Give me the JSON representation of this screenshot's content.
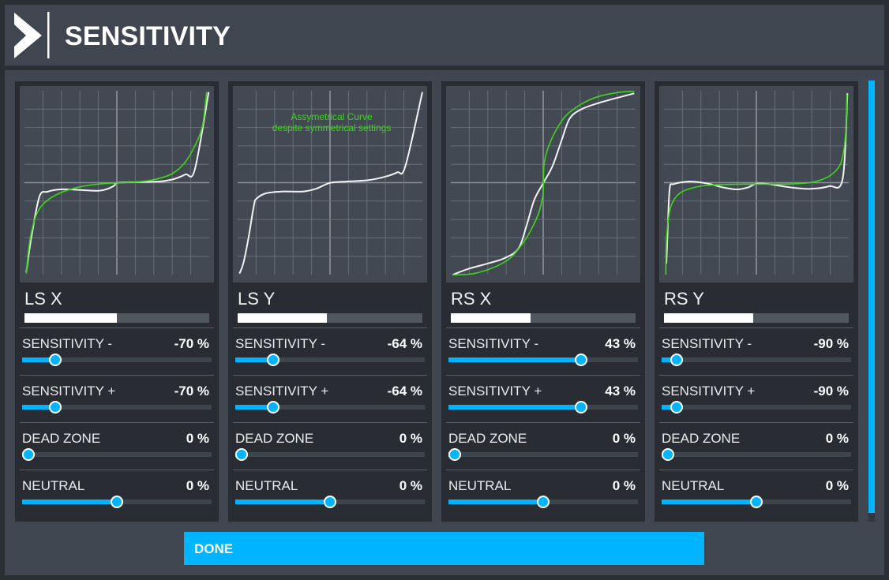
{
  "header": {
    "title": "SENSITIVITY",
    "logo_icon": "chevron-right-logo-icon"
  },
  "colors": {
    "accent": "#00b4ff",
    "curve_white": "#f2f2f2",
    "curve_green": "#3cd61a",
    "grid": "#686e76",
    "grid_center": "#8d9197"
  },
  "panels": [
    {
      "name": "LS X",
      "input_value_pct": 50,
      "graph": {
        "annotation": null,
        "white_curve": [
          [
            8.3,
            236
          ],
          [
            15,
            190
          ],
          [
            25,
            140
          ],
          [
            35,
            134
          ],
          [
            51.7,
            131
          ],
          [
            76.7,
            131.7
          ],
          [
            100,
            132.7
          ],
          [
            112,
            130
          ],
          [
            120,
            126
          ],
          [
            123.3,
            122.7
          ],
          [
            146.7,
            121.7
          ],
          [
            176.7,
            121
          ],
          [
            195,
            118
          ],
          [
            210,
            112
          ],
          [
            221.7,
            106
          ],
          [
            239.3,
            7.7
          ]
        ],
        "green_curve": [
          [
            8.3,
            237.7
          ],
          [
            10,
            219
          ],
          [
            13.3,
            192.7
          ],
          [
            20,
            166
          ],
          [
            30,
            149.3
          ],
          [
            50,
            136
          ],
          [
            76.7,
            127.7
          ],
          [
            100,
            124.3
          ],
          [
            123.3,
            122.7
          ],
          [
            146.7,
            121.7
          ],
          [
            170,
            118.7
          ],
          [
            193.3,
            111
          ],
          [
            210,
            96
          ],
          [
            223.3,
            72.7
          ],
          [
            231.7,
            49.3
          ],
          [
            236.7,
            7.7
          ]
        ]
      },
      "settings": [
        {
          "label": "SENSITIVITY -",
          "value_text": "-70 %",
          "position_pct": 15
        },
        {
          "label": "SENSITIVITY +",
          "value_text": "-70 %",
          "position_pct": 15
        },
        {
          "label": "DEAD ZONE",
          "value_text": "0 %",
          "position_pct": 0
        },
        {
          "label": "NEUTRAL",
          "value_text": "0 %",
          "position_pct": 50
        }
      ]
    },
    {
      "name": "LS Y",
      "input_value_pct": 48.3,
      "graph": {
        "annotation": {
          "line1": "Assymetrical Curve",
          "line2": "despite symmetrical settings"
        },
        "white_curve": [
          [
            8.3,
            237.7
          ],
          [
            13.3,
            224.3
          ],
          [
            20,
            191
          ],
          [
            26.7,
            151
          ],
          [
            30,
            142.7
          ],
          [
            41.7,
            136
          ],
          [
            61.7,
            133.7
          ],
          [
            88.3,
            133.7
          ],
          [
            105,
            130.3
          ],
          [
            123.3,
            122.7
          ],
          [
            145,
            121
          ],
          [
            171.7,
            119.3
          ],
          [
            195,
            114.3
          ],
          [
            208.3,
            109.3
          ],
          [
            218.3,
            102
          ],
          [
            240,
            7.7
          ]
        ],
        "green_curve": []
      },
      "settings": [
        {
          "label": "SENSITIVITY -",
          "value_text": "-64 %",
          "position_pct": 18
        },
        {
          "label": "SENSITIVITY +",
          "value_text": "-64 %",
          "position_pct": 18
        },
        {
          "label": "DEAD ZONE",
          "value_text": "0 %",
          "position_pct": 0
        },
        {
          "label": "NEUTRAL",
          "value_text": "0 %",
          "position_pct": 50
        }
      ]
    },
    {
      "name": "RS X",
      "input_value_pct": 43,
      "graph": {
        "annotation": null,
        "white_curve": [
          [
            8.3,
            239.3
          ],
          [
            28.3,
            231.7
          ],
          [
            55,
            224.3
          ],
          [
            75,
            217.7
          ],
          [
            91.7,
            206
          ],
          [
            101.7,
            177.7
          ],
          [
            111.7,
            144.3
          ],
          [
            123.3,
            122.7
          ],
          [
            135,
            101
          ],
          [
            146.7,
            67.7
          ],
          [
            156.7,
            41
          ],
          [
            171.7,
            29.3
          ],
          [
            195,
            21
          ],
          [
            221.7,
            13.7
          ],
          [
            238.3,
            9.3
          ]
        ],
        "green_curve": [
          [
            8.3,
            239.3
          ],
          [
            35,
            237.7
          ],
          [
            61.7,
            229.3
          ],
          [
            81.7,
            217.7
          ],
          [
            98.3,
            197.7
          ],
          [
            110,
            177.7
          ],
          [
            118.3,
            157.7
          ],
          [
            122.7,
            137.7
          ],
          [
            123.3,
            122.7
          ],
          [
            124,
            101
          ],
          [
            128.3,
            81
          ],
          [
            138.3,
            57.7
          ],
          [
            151.7,
            37.7
          ],
          [
            171.7,
            22.7
          ],
          [
            195,
            12.7
          ],
          [
            221.7,
            7.7
          ],
          [
            238.3,
            7
          ]
        ]
      },
      "settings": [
        {
          "label": "SENSITIVITY -",
          "value_text": "43 %",
          "position_pct": 71.5
        },
        {
          "label": "SENSITIVITY +",
          "value_text": "43 %",
          "position_pct": 71.5
        },
        {
          "label": "DEAD ZONE",
          "value_text": "0 %",
          "position_pct": 0
        },
        {
          "label": "NEUTRAL",
          "value_text": "0 %",
          "position_pct": 50
        }
      ]
    },
    {
      "name": "RS Y",
      "input_value_pct": 48.3,
      "graph": {
        "annotation": null,
        "white_curve": [
          [
            9,
            225
          ],
          [
            11,
            174.3
          ],
          [
            13.3,
            129.3
          ],
          [
            18.3,
            124.3
          ],
          [
            38.3,
            121
          ],
          [
            61.7,
            123.7
          ],
          [
            81.7,
            128.7
          ],
          [
            98.3,
            131
          ],
          [
            111.7,
            128.7
          ],
          [
            123.3,
            123.7
          ],
          [
            138.3,
            124.3
          ],
          [
            168.3,
            128.7
          ],
          [
            191.7,
            130.3
          ],
          [
            215,
            127
          ],
          [
            232.3,
            117.7
          ],
          [
            238.3,
            9.3
          ]
        ],
        "green_curve": [
          [
            8.3,
            239.3
          ],
          [
            9,
            197.7
          ],
          [
            11.7,
            167.7
          ],
          [
            16.7,
            147.7
          ],
          [
            28.3,
            134.3
          ],
          [
            51.7,
            127
          ],
          [
            78.3,
            125
          ],
          [
            123.3,
            124.3
          ],
          [
            161.7,
            124.3
          ],
          [
            188.3,
            122.7
          ],
          [
            208.3,
            117.7
          ],
          [
            221.7,
            109.3
          ],
          [
            230,
            97.7
          ],
          [
            234.3,
            77.7
          ],
          [
            236.7,
            51
          ],
          [
            237.7,
            11
          ]
        ]
      },
      "settings": [
        {
          "label": "SENSITIVITY -",
          "value_text": "-90 %",
          "position_pct": 5
        },
        {
          "label": "SENSITIVITY +",
          "value_text": "-90 %",
          "position_pct": 5
        },
        {
          "label": "DEAD ZONE",
          "value_text": "0 %",
          "position_pct": 0
        },
        {
          "label": "NEUTRAL",
          "value_text": "0 %",
          "position_pct": 50
        }
      ]
    }
  ],
  "footer": {
    "done_label": "DONE"
  },
  "scrollbar": {
    "thumb_pct": 98
  }
}
